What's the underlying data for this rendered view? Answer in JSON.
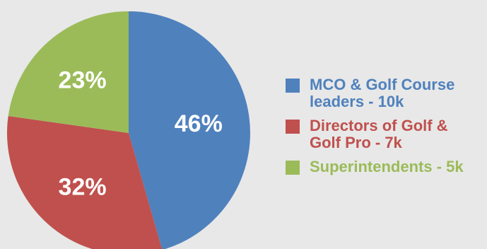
{
  "chart_data": {
    "type": "pie",
    "title": "",
    "slices": [
      {
        "label": "MCO & Golf Course leaders - 10k",
        "value": 46,
        "value_label": "46%",
        "color": "#4f81bd"
      },
      {
        "label": "Directors of Golf & Golf Pro - 7k",
        "value": 32,
        "value_label": "32%",
        "color": "#c0504d"
      },
      {
        "label": "Superintendents - 5k",
        "value": 23,
        "value_label": "23%",
        "color": "#9bbb59"
      }
    ],
    "start_angle_deg": 0,
    "direction": "clockwise",
    "legend_position": "right"
  }
}
